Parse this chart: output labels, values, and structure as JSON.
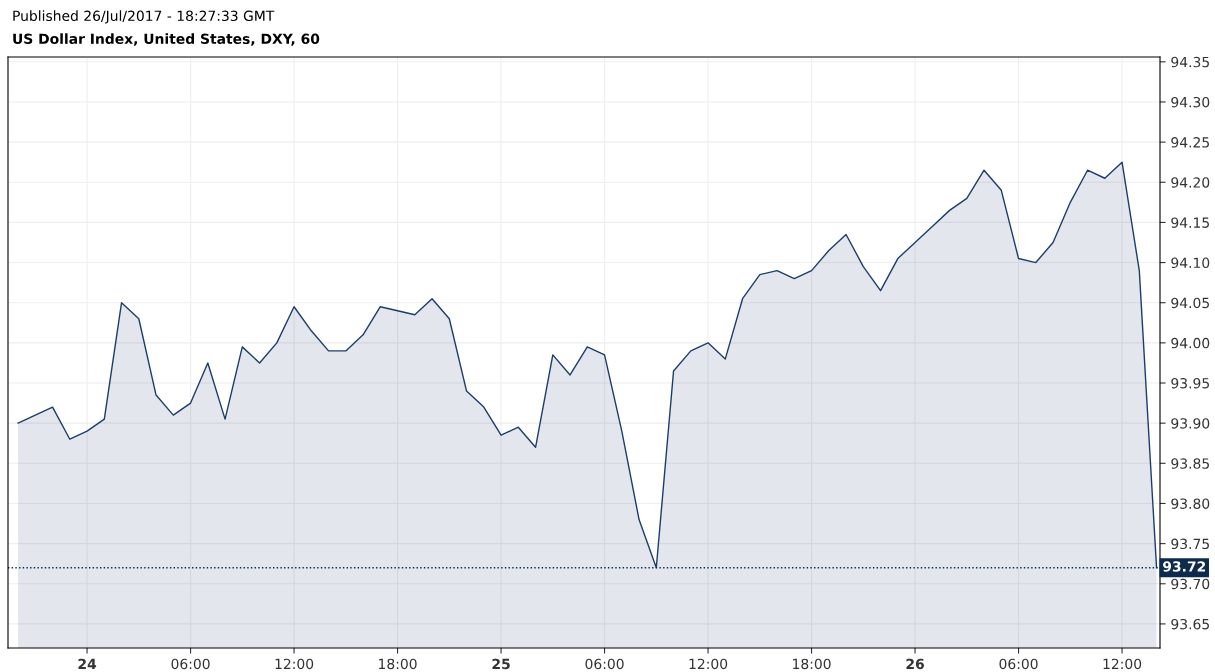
{
  "chart_data": {
    "type": "area",
    "title": "US Dollar Index, United States, DXY, 60",
    "annotations": [
      "Published 26/Jul/2017 - 18:27:33 GMT"
    ],
    "x": [
      "2017-07-23T20:00",
      "2017-07-23T21:00",
      "2017-07-23T22:00",
      "2017-07-23T23:00",
      "2017-07-24T00:00",
      "2017-07-24T01:00",
      "2017-07-24T02:00",
      "2017-07-24T03:00",
      "2017-07-24T04:00",
      "2017-07-24T05:00",
      "2017-07-24T06:00",
      "2017-07-24T07:00",
      "2017-07-24T08:00",
      "2017-07-24T09:00",
      "2017-07-24T10:00",
      "2017-07-24T11:00",
      "2017-07-24T12:00",
      "2017-07-24T13:00",
      "2017-07-24T14:00",
      "2017-07-24T15:00",
      "2017-07-24T16:00",
      "2017-07-24T17:00",
      "2017-07-24T18:00",
      "2017-07-24T19:00",
      "2017-07-24T20:00",
      "2017-07-24T21:00",
      "2017-07-24T22:00",
      "2017-07-24T23:00",
      "2017-07-25T00:00",
      "2017-07-25T01:00",
      "2017-07-25T02:00",
      "2017-07-25T03:00",
      "2017-07-25T04:00",
      "2017-07-25T05:00",
      "2017-07-25T06:00",
      "2017-07-25T07:00",
      "2017-07-25T08:00",
      "2017-07-25T09:00",
      "2017-07-25T10:00",
      "2017-07-25T11:00",
      "2017-07-25T12:00",
      "2017-07-25T13:00",
      "2017-07-25T14:00",
      "2017-07-25T15:00",
      "2017-07-25T16:00",
      "2017-07-25T17:00",
      "2017-07-25T18:00",
      "2017-07-25T19:00",
      "2017-07-25T20:00",
      "2017-07-25T21:00",
      "2017-07-25T22:00",
      "2017-07-25T23:00",
      "2017-07-26T00:00",
      "2017-07-26T01:00",
      "2017-07-26T02:00",
      "2017-07-26T03:00",
      "2017-07-26T04:00",
      "2017-07-26T05:00",
      "2017-07-26T06:00",
      "2017-07-26T07:00",
      "2017-07-26T08:00",
      "2017-07-26T09:00",
      "2017-07-26T10:00",
      "2017-07-26T11:00",
      "2017-07-26T12:00",
      "2017-07-26T13:00",
      "2017-07-26T14:00"
    ],
    "series": [
      {
        "color": "#1c3c6b",
        "values": [
          93.9,
          93.91,
          93.92,
          93.88,
          93.89,
          93.905,
          94.05,
          94.03,
          93.935,
          93.91,
          93.925,
          93.975,
          93.905,
          93.995,
          93.975,
          94.0,
          94.045,
          94.015,
          93.99,
          93.99,
          94.01,
          94.045,
          94.04,
          94.035,
          94.055,
          94.03,
          93.94,
          93.92,
          93.885,
          93.895,
          93.87,
          93.985,
          93.96,
          93.995,
          93.985,
          93.89,
          93.78,
          93.72,
          93.965,
          93.99,
          94.0,
          93.98,
          94.055,
          94.085,
          94.09,
          94.08,
          94.09,
          94.115,
          94.135,
          94.095,
          94.065,
          94.105,
          94.125,
          94.145,
          94.165,
          94.18,
          94.215,
          94.19,
          94.105,
          94.1,
          94.125,
          94.175,
          94.215,
          94.205,
          94.225,
          94.09,
          93.72
        ]
      }
    ],
    "xlim": [
      "2017-07-23T19:25",
      "2017-07-26T14:12"
    ],
    "xticks": [
      {
        "value": "2017-07-24T00:00",
        "label": "24"
      },
      {
        "value": "2017-07-24T06:00",
        "label": "06:00"
      },
      {
        "value": "2017-07-24T12:00",
        "label": "12:00"
      },
      {
        "value": "2017-07-24T18:00",
        "label": "18:00"
      },
      {
        "value": "2017-07-25T00:00",
        "label": "25"
      },
      {
        "value": "2017-07-25T06:00",
        "label": "06:00"
      },
      {
        "value": "2017-07-25T12:00",
        "label": "12:00"
      },
      {
        "value": "2017-07-25T18:00",
        "label": "18:00"
      },
      {
        "value": "2017-07-26T00:00",
        "label": "26"
      },
      {
        "value": "2017-07-26T06:00",
        "label": "06:00"
      },
      {
        "value": "2017-07-26T12:00",
        "label": "12:00"
      }
    ],
    "ylim": [
      93.62,
      94.356
    ],
    "yticks": [
      93.65,
      {
        "value": 93.7,
        "label": "93.70"
      },
      93.75,
      {
        "value": 93.8,
        "label": "93.80"
      },
      93.85,
      {
        "value": 93.9,
        "label": "93.90"
      },
      93.95,
      {
        "value": 94.0,
        "label": "94.00"
      },
      94.05,
      {
        "value": 94.1,
        "label": "94.10"
      },
      94.15,
      {
        "value": 94.2,
        "label": "94.20"
      },
      94.25,
      {
        "value": 94.3,
        "label": "94.30"
      },
      94.35
    ],
    "ref_lines": [
      {
        "axis": "y",
        "value": 93.72,
        "label": "93.72",
        "color": "#0e2a4d",
        "line_style": "dotted"
      }
    ],
    "grid": true,
    "legend": false
  }
}
